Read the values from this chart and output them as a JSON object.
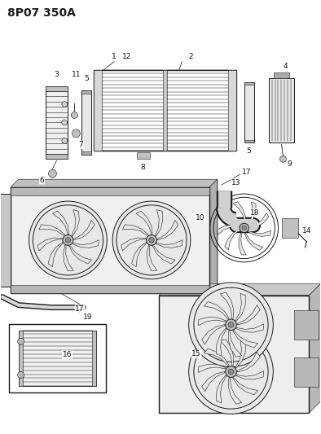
{
  "title": "8P07 350A",
  "bg_color": "#ffffff",
  "line_color": "#1a1a1a",
  "fig_width": 3.94,
  "fig_height": 5.33,
  "dpi": 100,
  "label_fontsize": 6.5,
  "title_fontsize": 10
}
